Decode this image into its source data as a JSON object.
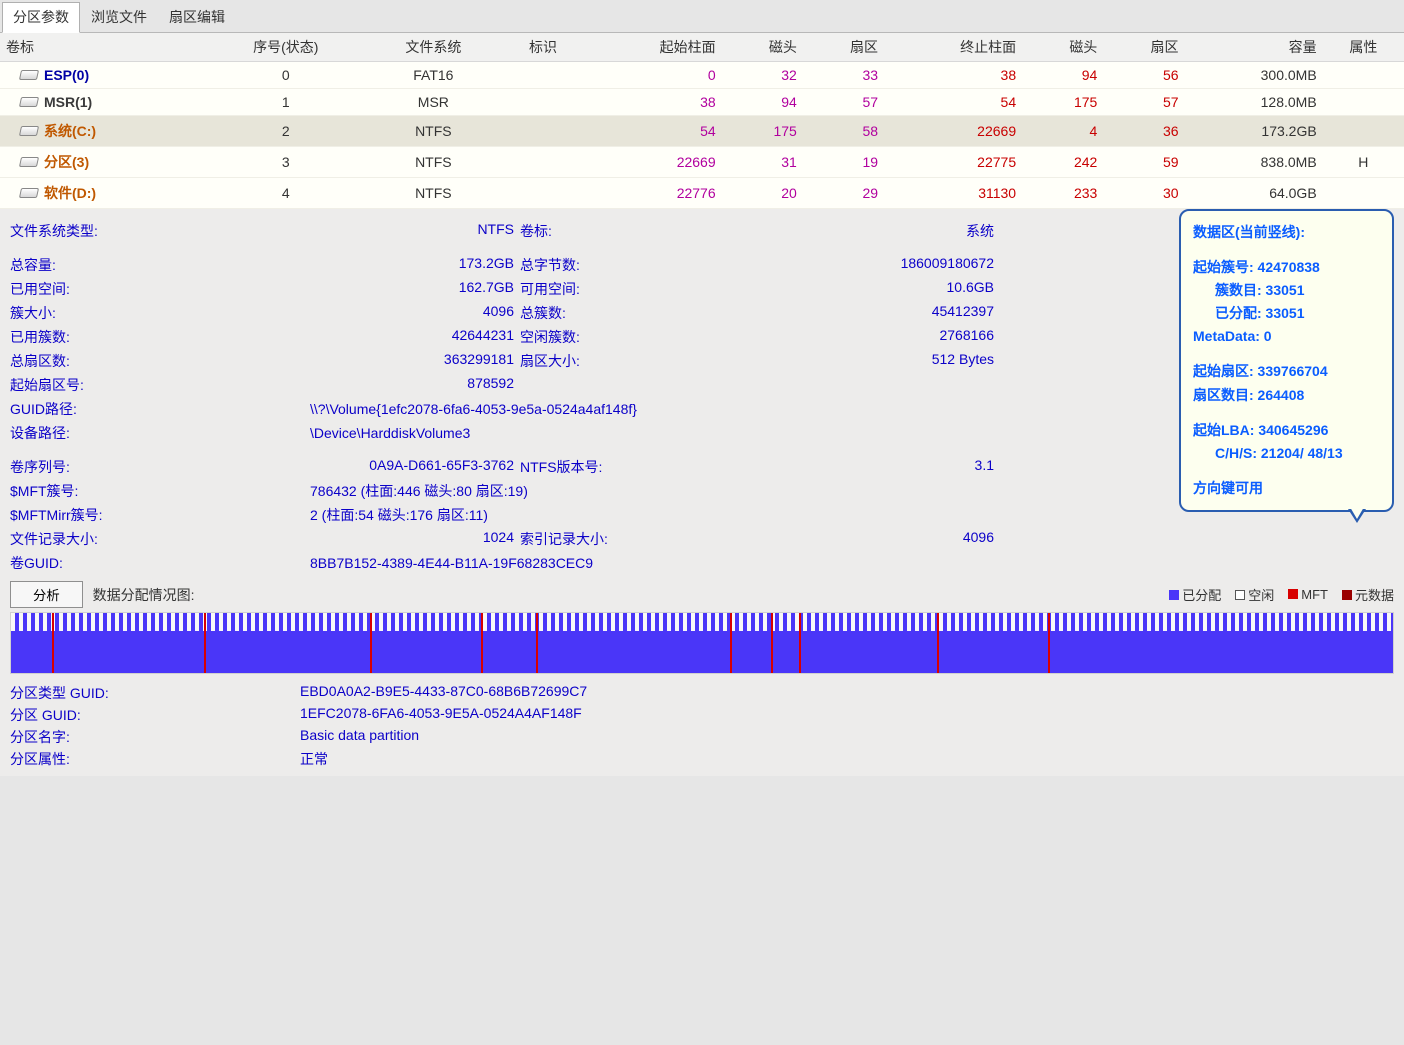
{
  "tabs": [
    {
      "label": "分区参数",
      "active": true
    },
    {
      "label": "浏览文件",
      "active": false
    },
    {
      "label": "扇区编辑",
      "active": false
    }
  ],
  "columns": [
    "卷标",
    "序号(状态)",
    "文件系统",
    "标识",
    "起始柱面",
    "磁头",
    "扇区",
    "终止柱面",
    "磁头",
    "扇区",
    "容量",
    "属性"
  ],
  "partitions": [
    {
      "name": "ESP(0)",
      "cls": "vol-esp",
      "seq": "0",
      "fs": "FAT16",
      "flag": "",
      "sc": "0",
      "sh": "32",
      "ss": "33",
      "ec": "38",
      "eh": "94",
      "es": "56",
      "cap": "300.0MB",
      "attr": "",
      "sel": false
    },
    {
      "name": "MSR(1)",
      "cls": "vol-msr",
      "seq": "1",
      "fs": "MSR",
      "flag": "",
      "sc": "38",
      "sh": "94",
      "ss": "57",
      "ec": "54",
      "eh": "175",
      "es": "57",
      "cap": "128.0MB",
      "attr": "",
      "sel": false
    },
    {
      "name": "系统(C:)",
      "cls": "vol-sys",
      "seq": "2",
      "fs": "NTFS",
      "flag": "",
      "sc": "54",
      "sh": "175",
      "ss": "58",
      "ec": "22669",
      "eh": "4",
      "es": "36",
      "cap": "173.2GB",
      "attr": "",
      "sel": true
    },
    {
      "name": "分区(3)",
      "cls": "vol-sys",
      "seq": "3",
      "fs": "NTFS",
      "flag": "",
      "sc": "22669",
      "sh": "31",
      "ss": "19",
      "ec": "22775",
      "eh": "242",
      "es": "59",
      "cap": "838.0MB",
      "attr": "H",
      "sel": false
    },
    {
      "name": "软件(D:)",
      "cls": "vol-sys",
      "seq": "4",
      "fs": "NTFS",
      "flag": "",
      "sc": "22776",
      "sh": "20",
      "ss": "29",
      "ec": "31130",
      "eh": "233",
      "es": "30",
      "cap": "64.0GB",
      "attr": "",
      "sel": false
    }
  ],
  "stats": {
    "row1": [
      [
        "文件系统类型:",
        "NTFS"
      ],
      [
        "卷标:",
        "系统"
      ]
    ],
    "row_space": true,
    "rows": [
      [
        [
          "总容量:",
          "173.2GB"
        ],
        [
          "总字节数:",
          "186009180672"
        ]
      ],
      [
        [
          "已用空间:",
          "162.7GB"
        ],
        [
          "可用空间:",
          "10.6GB"
        ]
      ],
      [
        [
          "簇大小:",
          "4096"
        ],
        [
          "总簇数:",
          "45412397"
        ]
      ],
      [
        [
          "已用簇数:",
          "42644231"
        ],
        [
          "空闲簇数:",
          "2768166"
        ]
      ],
      [
        [
          "总扇区数:",
          "363299181"
        ],
        [
          "扇区大小:",
          "512 Bytes"
        ]
      ],
      [
        [
          "起始扇区号:",
          "878592"
        ],
        [
          "",
          ""
        ]
      ]
    ],
    "wide": [
      [
        "GUID路径:",
        "\\\\?\\Volume{1efc2078-6fa6-4053-9e5a-0524a4af148f}"
      ],
      [
        "设备路径:",
        "\\Device\\HarddiskVolume3"
      ]
    ],
    "rows2": [
      [
        [
          "卷序列号:",
          "0A9A-D661-65F3-3762"
        ],
        [
          "NTFS版本号:",
          "3.1"
        ]
      ]
    ],
    "wide2": [
      [
        "$MFT簇号:",
        "786432 (柱面:446 磁头:80 扇区:19)"
      ],
      [
        "$MFTMirr簇号:",
        "2 (柱面:54 磁头:176 扇区:11)"
      ]
    ],
    "rows3": [
      [
        [
          "文件记录大小:",
          "1024"
        ],
        [
          "索引记录大小:",
          "4096"
        ]
      ]
    ],
    "wide3": [
      [
        "卷GUID:",
        "8BB7B152-4389-4E44-B11A-19F68283CEC9"
      ]
    ]
  },
  "analyze_btn": "分析",
  "analyze_label": "数据分配情况图:",
  "legend": [
    {
      "label": "已分配",
      "color": "#4a36f8",
      "fill": true
    },
    {
      "label": "空闲",
      "color": "#ffffff",
      "fill": false
    },
    {
      "label": "MFT",
      "color": "#d80000",
      "fill": true
    },
    {
      "label": "元数据",
      "color": "#9a0000",
      "fill": true
    }
  ],
  "chart_marks_pct": [
    3,
    14,
    26,
    34,
    38,
    52,
    55,
    57,
    67,
    75
  ],
  "tooltip": {
    "title": "数据区(当前竖线):",
    "lines": [
      {
        "t": "起始簇号: 42470838"
      },
      {
        "t": "簇数目: 33051",
        "ind": true
      },
      {
        "t": "已分配: 33051",
        "ind": true
      },
      {
        "t": "MetaData: 0"
      }
    ],
    "lines2": [
      {
        "t": "起始扇区: 339766704"
      },
      {
        "t": "扇区数目: 264408"
      }
    ],
    "lines3": [
      {
        "t": "起始LBA: 340645296"
      },
      {
        "t": "C/H/S: 21204/ 48/13",
        "ind": true
      }
    ],
    "foot": "方向键可用"
  },
  "guids": [
    [
      "分区类型 GUID:",
      "EBD0A0A2-B9E5-4433-87C0-68B6B72699C7"
    ],
    [
      "分区 GUID:",
      "1EFC2078-6FA6-4053-9E5A-0524A4AF148F"
    ],
    [
      "分区名字:",
      "Basic data partition"
    ],
    [
      "分区属性:",
      "正常"
    ]
  ]
}
